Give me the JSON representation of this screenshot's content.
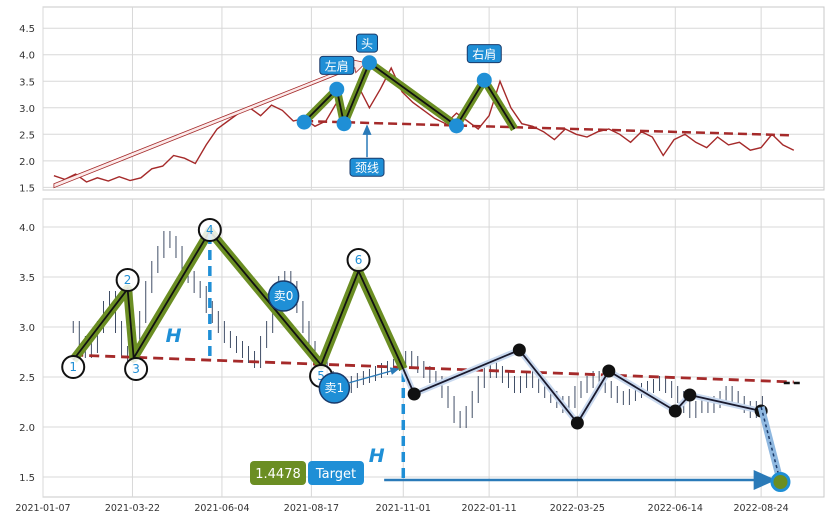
{
  "colors": {
    "price_line_top": "#a52a2a",
    "neckline": "#a52a2a",
    "green_zigzag": "#6b8e23",
    "marker_blue": "#1f8fd6",
    "label_bg": "#1f8fd6",
    "ohlc_bars": "#2b3a55",
    "projection_line": "#2a7ab8",
    "post_pattern_line": "#1a1a2e",
    "target_value_bg": "#6b8e23",
    "target_label_bg": "#1f8fd6"
  },
  "chart_data": [
    {
      "type": "line",
      "panel": "top",
      "title": "",
      "xlabel": "",
      "ylabel": "",
      "xlim": [
        "2021-01-07",
        "2022-10-15"
      ],
      "ylim": [
        1.45,
        4.9
      ],
      "y_ticks": [
        "1.5",
        "2.0",
        "2.5",
        "3.0",
        "3.5",
        "4.0",
        "4.5"
      ],
      "y_tick_values": [
        1.5,
        2.0,
        2.5,
        3.0,
        3.5,
        4.0,
        4.5
      ],
      "grid": true,
      "price_series": {
        "x": [
          "2021-01-16",
          "2021-01-25",
          "2021-02-03",
          "2021-02-12",
          "2021-02-21",
          "2021-03-02",
          "2021-03-11",
          "2021-03-20",
          "2021-03-29",
          "2021-04-07",
          "2021-04-16",
          "2021-04-25",
          "2021-05-04",
          "2021-05-13",
          "2021-05-22",
          "2021-05-31",
          "2021-06-09",
          "2021-06-18",
          "2021-06-27",
          "2021-07-06",
          "2021-07-15",
          "2021-07-24",
          "2021-08-02",
          "2021-08-11",
          "2021-08-20",
          "2021-08-29",
          "2021-09-07",
          "2021-09-16",
          "2021-09-25",
          "2021-10-04",
          "2021-10-13",
          "2021-10-22",
          "2021-10-31",
          "2021-11-09",
          "2021-11-18",
          "2021-11-27",
          "2021-12-06",
          "2021-12-15",
          "2021-12-24",
          "2022-01-02",
          "2022-01-11",
          "2022-01-20",
          "2022-01-29",
          "2022-02-07",
          "2022-02-16",
          "2022-02-25",
          "2022-03-06",
          "2022-03-15",
          "2022-03-24",
          "2022-04-02",
          "2022-04-11",
          "2022-04-20",
          "2022-04-29",
          "2022-05-08",
          "2022-05-17",
          "2022-05-26",
          "2022-06-04",
          "2022-06-13",
          "2022-06-22",
          "2022-07-01",
          "2022-07-10",
          "2022-07-19",
          "2022-07-28",
          "2022-08-06",
          "2022-08-15",
          "2022-08-24",
          "2022-09-02",
          "2022-09-11",
          "2022-09-20"
        ],
        "y": [
          1.72,
          1.65,
          1.75,
          1.6,
          1.68,
          1.62,
          1.7,
          1.63,
          1.68,
          1.85,
          1.9,
          2.1,
          2.05,
          1.95,
          2.3,
          2.6,
          2.75,
          2.9,
          3.0,
          2.85,
          3.05,
          2.95,
          2.75,
          2.8,
          2.65,
          2.75,
          3.1,
          2.85,
          3.4,
          3.0,
          3.35,
          3.75,
          3.3,
          3.1,
          2.95,
          2.8,
          2.7,
          2.9,
          2.75,
          2.6,
          2.85,
          3.5,
          3.0,
          2.7,
          2.65,
          2.55,
          2.4,
          2.6,
          2.5,
          2.45,
          2.55,
          2.6,
          2.5,
          2.35,
          2.55,
          2.45,
          2.1,
          2.4,
          2.5,
          2.35,
          2.25,
          2.45,
          2.3,
          2.35,
          2.2,
          2.25,
          2.5,
          2.3,
          2.2
        ]
      },
      "neckline": {
        "x": [
          "2021-08-11",
          "2022-09-20"
        ],
        "y": [
          2.75,
          2.48
        ]
      },
      "green_zigzag": {
        "x": [
          "2021-08-11",
          "2021-09-07",
          "2021-09-13",
          "2021-10-04",
          "2021-12-15",
          "2022-01-07",
          "2022-02-01"
        ],
        "y": [
          2.73,
          3.35,
          2.7,
          3.85,
          2.66,
          3.52,
          2.6
        ]
      },
      "markers": {
        "x": [
          "2021-08-11",
          "2021-09-07",
          "2021-09-13",
          "2021-10-04",
          "2021-12-15",
          "2022-01-07"
        ],
        "y": [
          2.73,
          3.35,
          2.7,
          3.85,
          2.66,
          3.52
        ]
      },
      "trend_arrow": {
        "x": [
          "2021-01-16",
          "2021-10-01"
        ],
        "y": [
          1.55,
          3.85
        ]
      },
      "annotations": [
        {
          "text": "头",
          "x": "2021-10-02",
          "y": 4.22
        },
        {
          "text": "左肩",
          "x": "2021-09-07",
          "y": 3.8
        },
        {
          "text": "右肩",
          "x": "2022-01-07",
          "y": 4.02
        },
        {
          "text": "颈线",
          "x": "2021-10-02",
          "y": 1.88
        }
      ]
    },
    {
      "type": "line",
      "panel": "bottom",
      "title": "",
      "xlabel": "",
      "ylabel": "",
      "xlim": [
        "2021-01-07",
        "2022-10-15"
      ],
      "ylim": [
        1.3,
        4.28
      ],
      "x_ticks": [
        "2021-01-07",
        "2021-03-22",
        "2021-06-04",
        "2021-08-17",
        "2021-11-01",
        "2022-01-11",
        "2022-03-25",
        "2022-06-14",
        "2022-08-24"
      ],
      "y_ticks": [
        "1.5",
        "2.0",
        "2.5",
        "3.0",
        "3.5",
        "4.0"
      ],
      "y_tick_values": [
        1.5,
        2.0,
        2.5,
        3.0,
        3.5,
        4.0
      ],
      "grid": true,
      "ohlc_x": [
        "2021-02-01",
        "2021-02-06",
        "2021-02-11",
        "2021-02-16",
        "2021-02-21",
        "2021-02-26",
        "2021-03-03",
        "2021-03-08",
        "2021-03-13",
        "2021-03-18",
        "2021-03-23",
        "2021-03-28",
        "2021-04-02",
        "2021-04-07",
        "2021-04-12",
        "2021-04-17",
        "2021-04-22",
        "2021-04-27",
        "2021-05-02",
        "2021-05-07",
        "2021-05-12",
        "2021-05-17",
        "2021-05-22",
        "2021-05-27",
        "2021-06-01",
        "2021-06-06",
        "2021-06-11",
        "2021-06-16",
        "2021-06-21",
        "2021-06-26",
        "2021-07-01",
        "2021-07-06",
        "2021-07-11",
        "2021-07-16",
        "2021-07-21",
        "2021-07-26",
        "2021-07-31",
        "2021-08-05",
        "2021-08-10",
        "2021-08-15",
        "2021-08-20",
        "2021-08-25",
        "2021-08-30",
        "2021-09-04",
        "2021-09-09",
        "2021-09-14",
        "2021-09-19",
        "2021-09-24",
        "2021-09-29",
        "2021-10-04",
        "2021-10-09",
        "2021-10-14",
        "2021-10-19",
        "2021-10-24",
        "2021-10-29",
        "2021-11-03",
        "2021-11-08",
        "2021-11-13",
        "2021-11-18",
        "2021-11-23",
        "2021-11-28",
        "2021-12-03",
        "2021-12-08",
        "2021-12-13",
        "2021-12-18",
        "2021-12-23",
        "2021-12-28",
        "2022-01-02",
        "2022-01-07",
        "2022-01-12",
        "2022-01-17",
        "2022-01-22",
        "2022-01-27",
        "2022-02-01",
        "2022-02-06",
        "2022-02-11",
        "2022-02-16",
        "2022-02-21",
        "2022-02-26",
        "2022-03-03",
        "2022-03-08",
        "2022-03-13",
        "2022-03-18",
        "2022-03-23",
        "2022-03-28",
        "2022-04-02",
        "2022-04-07",
        "2022-04-12",
        "2022-04-17",
        "2022-04-22",
        "2022-04-27",
        "2022-05-02",
        "2022-05-07",
        "2022-05-12",
        "2022-05-17",
        "2022-05-22",
        "2022-05-27",
        "2022-06-01",
        "2022-06-06",
        "2022-06-11",
        "2022-06-16",
        "2022-06-21",
        "2022-06-26",
        "2022-07-01",
        "2022-07-06",
        "2022-07-11",
        "2022-07-16",
        "2022-07-21",
        "2022-07-26",
        "2022-07-31",
        "2022-08-05",
        "2022-08-10",
        "2022-08-15",
        "2022-08-20",
        "2022-08-25"
      ],
      "ohlc_close": [
        3.0,
        2.85,
        2.75,
        2.8,
        3.0,
        3.2,
        3.3,
        3.0,
        2.75,
        2.7,
        2.9,
        3.1,
        3.4,
        3.6,
        3.75,
        3.9,
        3.85,
        3.75,
        3.6,
        3.5,
        3.4,
        3.35,
        3.2,
        3.1,
        3.0,
        2.9,
        2.85,
        2.8,
        2.75,
        2.7,
        2.65,
        2.85,
        3.0,
        3.2,
        3.45,
        3.5,
        3.4,
        3.2,
        3.0,
        2.8,
        2.65,
        2.6,
        2.5,
        2.45,
        2.42,
        2.4,
        2.45,
        2.48,
        2.5,
        2.52,
        2.55,
        2.58,
        2.6,
        2.62,
        2.65,
        2.7,
        2.65,
        2.6,
        2.55,
        2.5,
        2.45,
        2.35,
        2.25,
        2.1,
        2.05,
        2.15,
        2.3,
        2.45,
        2.55,
        2.6,
        2.55,
        2.5,
        2.45,
        2.4,
        2.45,
        2.5,
        2.45,
        2.4,
        2.35,
        2.3,
        2.25,
        2.2,
        2.25,
        2.35,
        2.4,
        2.45,
        2.5,
        2.45,
        2.4,
        2.35,
        2.3,
        2.28,
        2.32,
        2.35,
        2.38,
        2.4,
        2.42,
        2.45,
        2.4,
        2.35,
        2.3,
        2.2,
        2.15,
        2.2,
        2.25,
        2.2,
        2.25,
        2.3,
        2.35,
        2.3,
        2.25,
        2.2,
        2.15,
        2.2,
        2.25
      ],
      "neckline": {
        "x": [
          "2021-02-01",
          "2022-09-20"
        ],
        "y": [
          2.72,
          2.45
        ]
      },
      "green_zigzag": {
        "x": [
          "2021-02-01",
          "2021-03-18",
          "2021-03-23",
          "2021-05-25",
          "2021-08-25",
          "2021-09-25",
          "2021-11-01"
        ],
        "y": [
          2.67,
          3.38,
          2.69,
          3.96,
          2.62,
          3.56,
          2.58
        ]
      },
      "points": [
        {
          "label": "1",
          "x": "2021-02-01",
          "y": 2.6
        },
        {
          "label": "2",
          "x": "2021-03-18",
          "y": 3.47
        },
        {
          "label": "3",
          "x": "2021-03-25",
          "y": 2.58
        },
        {
          "label": "4",
          "x": "2021-05-25",
          "y": 3.97
        },
        {
          "label": "5",
          "x": "2021-08-25",
          "y": 2.51
        },
        {
          "label": "6",
          "x": "2021-09-25",
          "y": 3.67
        }
      ],
      "post_pattern": {
        "x": [
          "2021-11-01",
          "2021-11-10",
          "2022-02-05",
          "2022-03-25",
          "2022-04-20",
          "2022-06-14",
          "2022-06-26",
          "2022-08-24"
        ],
        "y": [
          2.58,
          2.33,
          2.77,
          2.04,
          2.56,
          2.16,
          2.32,
          2.16
        ]
      },
      "projection": {
        "x": [
          "2022-08-24",
          "2022-09-09"
        ],
        "y": [
          2.2,
          1.45
        ]
      },
      "height_lines": [
        {
          "x": "2021-05-25",
          "y_from": 3.93,
          "y_to": 2.67
        },
        {
          "x": "2021-11-01",
          "y_from": 2.55,
          "y_to": 1.46
        }
      ],
      "target_arrow": {
        "x": [
          "2021-11-10",
          "2022-09-05"
        ],
        "y": [
          1.47,
          1.47
        ]
      },
      "end_marker": {
        "x": "2022-09-09",
        "y": 1.45
      },
      "height_labels": [
        {
          "text": "H",
          "x": "2021-04-25",
          "y": 2.85
        },
        {
          "text": "H",
          "x": "2021-10-10",
          "y": 1.65
        }
      ],
      "sell_markers": [
        {
          "label": "卖0",
          "x": "2021-07-25",
          "y": 3.31
        },
        {
          "label": "卖1",
          "x": "2021-09-05",
          "y": 2.39
        }
      ],
      "target": {
        "value": "1.4478",
        "label": "Target"
      }
    }
  ]
}
